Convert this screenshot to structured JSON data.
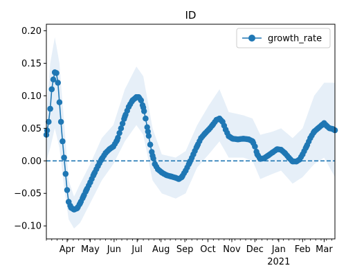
{
  "chart_data": {
    "type": "line",
    "title": "ID",
    "xlabel": "",
    "ylabel": "",
    "x_start": "2020-03-05",
    "x_end": "2021-03-15",
    "ylim": [
      -0.12,
      0.21
    ],
    "yticks": [
      -0.1,
      -0.05,
      0.0,
      0.05,
      0.1,
      0.15,
      0.2
    ],
    "ytick_labels": [
      "−0.10",
      "−0.05",
      "0.00",
      "0.05",
      "0.10",
      "0.15",
      "0.20"
    ],
    "xticks": [
      {
        "date": "2020-04-01",
        "label": "Apr"
      },
      {
        "date": "2020-05-01",
        "label": "May"
      },
      {
        "date": "2020-06-01",
        "label": "Jun"
      },
      {
        "date": "2020-07-01",
        "label": "Jul"
      },
      {
        "date": "2020-08-01",
        "label": "Aug"
      },
      {
        "date": "2020-09-01",
        "label": "Sep"
      },
      {
        "date": "2020-10-01",
        "label": "Oct"
      },
      {
        "date": "2020-11-01",
        "label": "Nov"
      },
      {
        "date": "2020-12-01",
        "label": "Dec"
      },
      {
        "date": "2021-01-01",
        "label": "Jan"
      },
      {
        "date": "2021-02-01",
        "label": "Feb"
      },
      {
        "date": "2021-03-01",
        "label": "Mar"
      }
    ],
    "year_label": {
      "date": "2021-01-01",
      "label": "2021"
    },
    "reference_line": {
      "y": 0.0,
      "style": "dashed"
    },
    "legend": {
      "position": "top-right",
      "entries": [
        "growth_rate"
      ]
    },
    "grid": false,
    "colors": {
      "series": "#1f77b4",
      "band": "#dde9f5",
      "axis": "#000000"
    },
    "series": [
      {
        "name": "growth_rate",
        "points": [
          [
            "2020-03-05",
            0.04
          ],
          [
            "2020-03-08",
            0.06
          ],
          [
            "2020-03-10",
            0.08
          ],
          [
            "2020-03-12",
            0.11
          ],
          [
            "2020-03-14",
            0.125
          ],
          [
            "2020-03-16",
            0.136
          ],
          [
            "2020-03-18",
            0.135
          ],
          [
            "2020-03-20",
            0.12
          ],
          [
            "2020-03-22",
            0.09
          ],
          [
            "2020-03-24",
            0.06
          ],
          [
            "2020-03-26",
            0.03
          ],
          [
            "2020-03-28",
            0.005
          ],
          [
            "2020-03-30",
            -0.02
          ],
          [
            "2020-04-01",
            -0.045
          ],
          [
            "2020-04-03",
            -0.063
          ],
          [
            "2020-04-06",
            -0.072
          ],
          [
            "2020-04-10",
            -0.075
          ],
          [
            "2020-04-14",
            -0.073
          ],
          [
            "2020-04-18",
            -0.065
          ],
          [
            "2020-04-22",
            -0.055
          ],
          [
            "2020-04-26",
            -0.045
          ],
          [
            "2020-05-01",
            -0.033
          ],
          [
            "2020-05-06",
            -0.02
          ],
          [
            "2020-05-11",
            -0.008
          ],
          [
            "2020-05-16",
            0.003
          ],
          [
            "2020-05-21",
            0.012
          ],
          [
            "2020-05-26",
            0.018
          ],
          [
            "2020-05-31",
            0.022
          ],
          [
            "2020-06-05",
            0.032
          ],
          [
            "2020-06-10",
            0.05
          ],
          [
            "2020-06-15",
            0.068
          ],
          [
            "2020-06-20",
            0.083
          ],
          [
            "2020-06-25",
            0.093
          ],
          [
            "2020-06-30",
            0.098
          ],
          [
            "2020-07-03",
            0.098
          ],
          [
            "2020-07-06",
            0.093
          ],
          [
            "2020-07-09",
            0.082
          ],
          [
            "2020-07-12",
            0.065
          ],
          [
            "2020-07-15",
            0.045
          ],
          [
            "2020-07-18",
            0.025
          ],
          [
            "2020-07-21",
            0.008
          ],
          [
            "2020-07-24",
            -0.005
          ],
          [
            "2020-07-28",
            -0.013
          ],
          [
            "2020-08-02",
            -0.018
          ],
          [
            "2020-08-08",
            -0.022
          ],
          [
            "2020-08-14",
            -0.024
          ],
          [
            "2020-08-20",
            -0.026
          ],
          [
            "2020-08-24",
            -0.028
          ],
          [
            "2020-08-28",
            -0.025
          ],
          [
            "2020-09-02",
            -0.015
          ],
          [
            "2020-09-07",
            -0.003
          ],
          [
            "2020-09-12",
            0.01
          ],
          [
            "2020-09-17",
            0.023
          ],
          [
            "2020-09-22",
            0.035
          ],
          [
            "2020-09-27",
            0.042
          ],
          [
            "2020-10-02",
            0.048
          ],
          [
            "2020-10-07",
            0.055
          ],
          [
            "2020-10-12",
            0.063
          ],
          [
            "2020-10-16",
            0.065
          ],
          [
            "2020-10-20",
            0.06
          ],
          [
            "2020-10-24",
            0.048
          ],
          [
            "2020-10-28",
            0.038
          ],
          [
            "2020-11-02",
            0.034
          ],
          [
            "2020-11-09",
            0.033
          ],
          [
            "2020-11-16",
            0.034
          ],
          [
            "2020-11-23",
            0.033
          ],
          [
            "2020-11-28",
            0.03
          ],
          [
            "2020-12-01",
            0.022
          ],
          [
            "2020-12-04",
            0.01
          ],
          [
            "2020-12-08",
            0.003
          ],
          [
            "2020-12-13",
            0.004
          ],
          [
            "2020-12-18",
            0.008
          ],
          [
            "2020-12-24",
            0.013
          ],
          [
            "2020-12-30",
            0.018
          ],
          [
            "2021-01-04",
            0.017
          ],
          [
            "2021-01-09",
            0.012
          ],
          [
            "2021-01-14",
            0.005
          ],
          [
            "2021-01-19",
            -0.001
          ],
          [
            "2021-01-24",
            -0.001
          ],
          [
            "2021-01-28",
            0.002
          ],
          [
            "2021-02-01",
            0.01
          ],
          [
            "2021-02-06",
            0.022
          ],
          [
            "2021-02-11",
            0.035
          ],
          [
            "2021-02-16",
            0.045
          ],
          [
            "2021-02-21",
            0.05
          ],
          [
            "2021-02-26",
            0.055
          ],
          [
            "2021-03-01",
            0.058
          ],
          [
            "2021-03-04",
            0.054
          ],
          [
            "2021-03-08",
            0.05
          ],
          [
            "2021-03-12",
            0.049
          ],
          [
            "2021-03-15",
            0.047
          ]
        ],
        "band": [
          [
            "2020-03-05",
            0.0,
            0.07
          ],
          [
            "2020-03-10",
            0.02,
            0.15
          ],
          [
            "2020-03-16",
            0.05,
            0.19
          ],
          [
            "2020-03-22",
            0.02,
            0.15
          ],
          [
            "2020-03-28",
            -0.04,
            0.06
          ],
          [
            "2020-04-03",
            -0.09,
            -0.03
          ],
          [
            "2020-04-10",
            -0.104,
            -0.055
          ],
          [
            "2020-04-18",
            -0.095,
            -0.035
          ],
          [
            "2020-05-01",
            -0.065,
            -0.005
          ],
          [
            "2020-05-16",
            -0.03,
            0.035
          ],
          [
            "2020-05-31",
            -0.005,
            0.055
          ],
          [
            "2020-06-15",
            0.03,
            0.11
          ],
          [
            "2020-06-30",
            0.055,
            0.145
          ],
          [
            "2020-07-09",
            0.04,
            0.13
          ],
          [
            "2020-07-21",
            -0.03,
            0.05
          ],
          [
            "2020-08-02",
            -0.05,
            0.01
          ],
          [
            "2020-08-20",
            -0.058,
            0.005
          ],
          [
            "2020-09-02",
            -0.05,
            0.015
          ],
          [
            "2020-09-17",
            -0.01,
            0.055
          ],
          [
            "2020-10-02",
            0.01,
            0.085
          ],
          [
            "2020-10-16",
            0.03,
            0.11
          ],
          [
            "2020-10-28",
            0.005,
            0.075
          ],
          [
            "2020-11-16",
            0.005,
            0.07
          ],
          [
            "2020-11-28",
            0.0,
            0.065
          ],
          [
            "2020-12-08",
            -0.028,
            0.04
          ],
          [
            "2020-12-24",
            -0.02,
            0.045
          ],
          [
            "2021-01-04",
            -0.015,
            0.05
          ],
          [
            "2021-01-19",
            -0.035,
            0.035
          ],
          [
            "2021-02-01",
            -0.025,
            0.05
          ],
          [
            "2021-02-16",
            -0.005,
            0.1
          ],
          [
            "2021-03-01",
            0.005,
            0.12
          ],
          [
            "2021-03-15",
            -0.025,
            0.12
          ]
        ]
      }
    ]
  }
}
